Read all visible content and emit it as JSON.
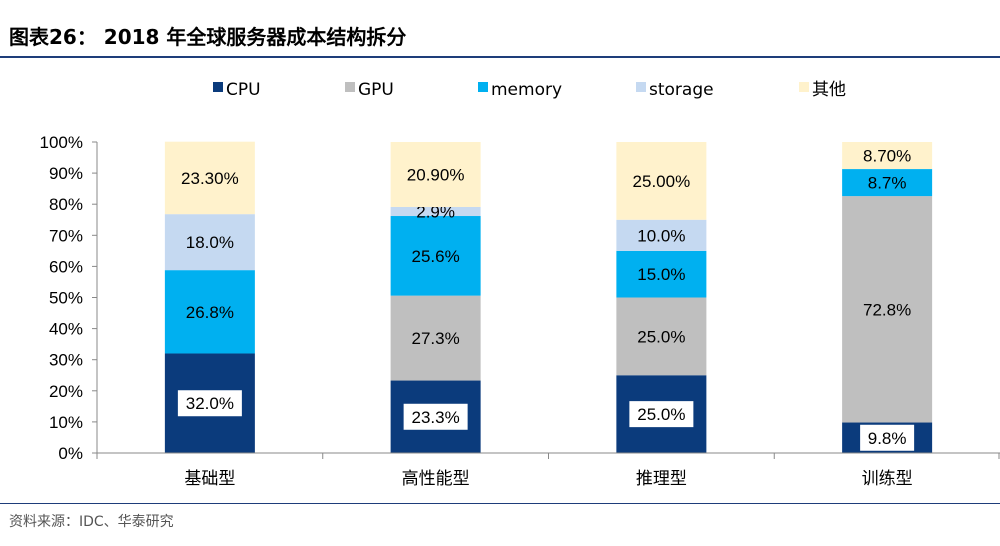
{
  "header": {
    "title": "图表26：  2018 年全球服务器成本结构拆分"
  },
  "footer": {
    "source": "资料来源：IDC、华泰研究"
  },
  "chart_data": {
    "type": "bar",
    "stacked": true,
    "title": "",
    "xlabel": "",
    "ylabel": "",
    "ylim": [
      0,
      100
    ],
    "y_ticks": [
      "0%",
      "10%",
      "20%",
      "30%",
      "40%",
      "50%",
      "60%",
      "70%",
      "80%",
      "90%",
      "100%"
    ],
    "categories": [
      "基础型",
      "高性能型",
      "推理型",
      "训练型"
    ],
    "legend_position": "top",
    "series": [
      {
        "name": "CPU",
        "color": "#0b3b7c",
        "values": [
          32.0,
          23.3,
          25.0,
          9.8
        ],
        "labels": [
          "32.0%",
          "23.3%",
          "25.0%",
          "9.8%"
        ]
      },
      {
        "name": "GPU",
        "color": "#bfbfbf",
        "values": [
          0,
          27.3,
          25.0,
          72.8
        ],
        "labels": [
          "",
          "27.3%",
          "25.0%",
          "72.8%"
        ]
      },
      {
        "name": "memory",
        "color": "#00b0f0",
        "values": [
          26.8,
          25.6,
          15.0,
          8.7
        ],
        "labels": [
          "26.8%",
          "25.6%",
          "15.0%",
          "8.7%"
        ]
      },
      {
        "name": "storage",
        "color": "#c5d9f1",
        "values": [
          18.0,
          2.9,
          10.0,
          0
        ],
        "labels": [
          "18.0%",
          "2.9%",
          "10.0%",
          ""
        ]
      },
      {
        "name": "其他",
        "color": "#fff2cc",
        "values": [
          23.3,
          20.9,
          25.0,
          8.7
        ],
        "labels": [
          "23.30%",
          "20.90%",
          "25.00%",
          "8.70%"
        ]
      }
    ]
  }
}
